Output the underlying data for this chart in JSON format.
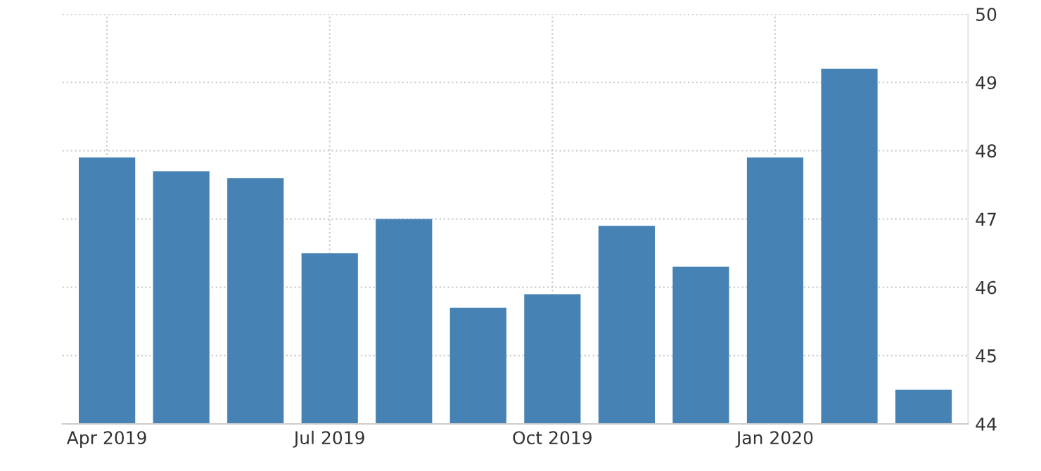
{
  "chart_data": {
    "type": "bar",
    "categories": [
      "Apr 2019",
      null,
      null,
      "Jul 2019",
      null,
      null,
      "Oct 2019",
      null,
      null,
      "Jan 2020",
      null,
      null
    ],
    "values": [
      47.9,
      47.7,
      47.6,
      46.5,
      47.0,
      45.7,
      45.9,
      46.9,
      46.3,
      47.9,
      49.2,
      44.5
    ],
    "color": "#4682b4",
    "ylim": [
      44,
      50
    ],
    "yticks": [
      44,
      45,
      46,
      47,
      48,
      49,
      50
    ],
    "grid": true,
    "legend": false
  }
}
